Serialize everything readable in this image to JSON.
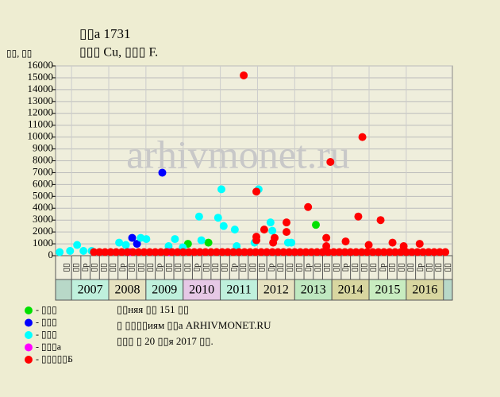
{
  "chart_data": {
    "type": "scatter",
    "title": "▯▯а 1731",
    "subtitle": "▯▯▯ Cu, ▯▯▯ F.",
    "y_label": "▯▯, ▯▯",
    "watermark": "arhivmonet.ru",
    "notes": [
      "▯▯няя ▯▯ 151 ▯▯",
      "▯ ▯▯▯▯иям ▯▯а ARHIVMONET.RU",
      "▯▯▯ ▯ 20 ▯▯я 2017 ▯▯."
    ],
    "xlim": [
      2006.57,
      2017.24
    ],
    "ylim": [
      0,
      16000
    ],
    "yticks": [
      0,
      1000,
      2000,
      3000,
      4000,
      5000,
      6000,
      7000,
      8000,
      9000,
      10000,
      11000,
      12000,
      13000,
      14000,
      15000,
      16000
    ],
    "grid": true,
    "xticks": [
      {
        "value": 2007.5,
        "label": "2007"
      },
      {
        "value": 2008.5,
        "label": "2008"
      },
      {
        "value": 2009.5,
        "label": "2009"
      },
      {
        "value": 2010.5,
        "label": "2010"
      },
      {
        "value": 2011.5,
        "label": "2011"
      },
      {
        "value": 2012.5,
        "label": "2012"
      },
      {
        "value": 2013.5,
        "label": "2013"
      },
      {
        "value": 2014.5,
        "label": "2014"
      },
      {
        "value": 2015.5,
        "label": "2015"
      },
      {
        "value": 2016.5,
        "label": "2016"
      }
    ],
    "year_band_colors": [
      "#bff0dc",
      "#e6e2c0",
      "#bff0dc",
      "#e6c8e6",
      "#bff0dc",
      "#e6e2c0",
      "#bfe8c0",
      "#d8d6a0",
      "#c8ecc0",
      "#d8d6a0"
    ],
    "quarter_ticks": [
      {
        "value": 2006.875,
        "label": "▯▯"
      },
      {
        "value": 2007.125,
        "label": "▯▯"
      },
      {
        "value": 2007.375,
        "label": "▯р"
      },
      {
        "value": 2007.625,
        "label": "▯▯"
      },
      {
        "value": 2007.875,
        "label": "▯▯"
      },
      {
        "value": 2008.125,
        "label": "▯▯"
      },
      {
        "value": 2008.375,
        "label": "▯р"
      },
      {
        "value": 2008.625,
        "label": "▯▯"
      },
      {
        "value": 2008.875,
        "label": "▯▯"
      },
      {
        "value": 2009.125,
        "label": "▯▯"
      },
      {
        "value": 2009.375,
        "label": "▯р"
      },
      {
        "value": 2009.625,
        "label": "▯▯"
      },
      {
        "value": 2009.875,
        "label": "▯▯"
      },
      {
        "value": 2010.125,
        "label": "▯▯"
      },
      {
        "value": 2010.375,
        "label": "▯р"
      },
      {
        "value": 2010.625,
        "label": "▯▯"
      },
      {
        "value": 2010.875,
        "label": "▯▯"
      },
      {
        "value": 2011.125,
        "label": "▯▯"
      },
      {
        "value": 2011.375,
        "label": "▯р"
      },
      {
        "value": 2011.625,
        "label": "▯▯"
      },
      {
        "value": 2011.875,
        "label": "▯▯"
      },
      {
        "value": 2012.125,
        "label": "▯▯"
      },
      {
        "value": 2012.375,
        "label": "▯р"
      },
      {
        "value": 2012.625,
        "label": "▯▯"
      },
      {
        "value": 2012.875,
        "label": "▯▯"
      },
      {
        "value": 2013.125,
        "label": "▯▯"
      },
      {
        "value": 2013.375,
        "label": "▯р"
      },
      {
        "value": 2013.625,
        "label": "▯▯"
      },
      {
        "value": 2013.875,
        "label": "▯▯"
      },
      {
        "value": 2014.125,
        "label": "▯▯"
      },
      {
        "value": 2014.375,
        "label": "▯р"
      },
      {
        "value": 2014.625,
        "label": "▯▯"
      },
      {
        "value": 2014.875,
        "label": "▯▯"
      },
      {
        "value": 2015.125,
        "label": "▯▯"
      },
      {
        "value": 2015.375,
        "label": "▯р"
      },
      {
        "value": 2015.625,
        "label": "▯▯"
      },
      {
        "value": 2015.875,
        "label": "▯▯"
      },
      {
        "value": 2016.125,
        "label": "▯▯"
      },
      {
        "value": 2016.375,
        "label": "▯р"
      },
      {
        "value": 2016.625,
        "label": "▯▯"
      },
      {
        "value": 2016.875,
        "label": "▯▯"
      },
      {
        "value": 2017.125,
        "label": "▯▯"
      }
    ],
    "series": [
      {
        "name": "- ▯▯▯",
        "color": "#00e000",
        "x": [
          2010.13,
          2010.68,
          2013.57
        ],
        "values": [
          1000,
          1100,
          2600
        ]
      },
      {
        "name": "- ▯▯▯",
        "color": "#0000ff",
        "x": [
          2008.63,
          2008.76,
          2009.44
        ],
        "values": [
          1500,
          1000,
          7000
        ]
      },
      {
        "name": "- ▯▯▯",
        "color": "#00ffff",
        "x": [
          2006.68,
          2006.96,
          2007.15,
          2007.32,
          2007.54,
          2008.28,
          2008.46,
          2008.86,
          2009.01,
          2009.61,
          2009.78,
          2009.99,
          2010.43,
          2010.49,
          2010.94,
          2011.03,
          2011.09,
          2011.39,
          2011.44,
          2011.92,
          2012.03,
          2012.35,
          2012.4,
          2012.82,
          2012.91
        ],
        "values": [
          300,
          400,
          900,
          400,
          400,
          1100,
          900,
          1500,
          1400,
          800,
          1400,
          700,
          3300,
          1300,
          3200,
          5600,
          2500,
          2200,
          800,
          1100,
          5600,
          2800,
          2100,
          1100,
          1100
        ]
      },
      {
        "name": "- ▯▯▯а",
        "color": "#ff00ff",
        "x": [
          2008.58,
          2009.61
        ],
        "values": [
          300,
          300
        ]
      },
      {
        "name": "- ▯▯▯▯▯Б",
        "color": "#ff0000",
        "x": [
          2011.63,
          2011.97,
          2011.97,
          2011.97,
          2012.18,
          2012.46,
          2012.42,
          2012.78,
          2012.78,
          2013.36,
          2013.85,
          2013.85,
          2013.96,
          2014.37,
          2014.71,
          2014.82,
          2014.99,
          2015.31,
          2015.63,
          2015.93,
          2016.36,
          2007.6,
          2007.75,
          2007.9,
          2008.05,
          2008.2,
          2008.35,
          2008.5,
          2008.65,
          2008.8,
          2008.95,
          2009.1,
          2009.25,
          2009.4,
          2009.55,
          2009.7,
          2009.85,
          2010.0,
          2010.15,
          2010.3,
          2010.45,
          2010.6,
          2010.75,
          2010.9,
          2011.05,
          2011.2,
          2011.35,
          2011.5,
          2011.65,
          2011.8,
          2011.95,
          2012.1,
          2012.25,
          2012.4,
          2012.55,
          2012.7,
          2012.85,
          2013.0,
          2013.15,
          2013.3,
          2013.45,
          2013.6,
          2013.75,
          2013.9,
          2014.05,
          2014.2,
          2014.35,
          2014.5,
          2014.65,
          2014.8,
          2014.95,
          2015.1,
          2015.25,
          2015.4,
          2015.55,
          2015.7,
          2015.85,
          2016.0,
          2016.15,
          2016.3,
          2016.45,
          2016.6,
          2016.75,
          2016.9,
          2017.05
        ],
        "values": [
          15200,
          5400,
          1600,
          1300,
          2200,
          1500,
          1100,
          2800,
          2000,
          4100,
          1500,
          800,
          7900,
          1200,
          3300,
          10000,
          900,
          3000,
          1100,
          800,
          1000,
          300,
          300,
          300,
          300,
          300,
          300,
          300,
          300,
          300,
          300,
          300,
          300,
          300,
          300,
          300,
          300,
          300,
          300,
          300,
          300,
          300,
          300,
          300,
          300,
          300,
          300,
          300,
          300,
          300,
          300,
          300,
          300,
          300,
          300,
          300,
          300,
          300,
          300,
          300,
          300,
          300,
          300,
          300,
          300,
          300,
          300,
          300,
          300,
          300,
          300,
          300,
          300,
          300,
          300,
          300,
          300,
          300,
          300,
          300,
          300,
          300,
          300,
          300,
          300
        ]
      }
    ]
  }
}
